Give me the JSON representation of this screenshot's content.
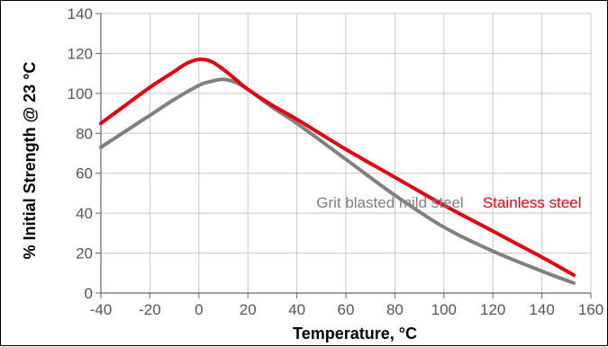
{
  "chart_data": {
    "type": "line",
    "xlabel": "Temperature, °C",
    "ylabel": "% Initial Strength @ 23 °C",
    "xlim": [
      -40,
      160
    ],
    "ylim": [
      0,
      140
    ],
    "xticks": [
      "-40",
      "-20",
      "0",
      "20",
      "40",
      "60",
      "80",
      "100",
      "120",
      "140",
      "160"
    ],
    "yticks": [
      "0",
      "20",
      "40",
      "60",
      "80",
      "100",
      "120",
      "140"
    ],
    "grid": true,
    "legend": "none",
    "series": [
      {
        "name": "Stainless steel",
        "color": "#e8000b",
        "x": [
          -40,
          -30,
          -20,
          -10,
          -5,
          0,
          5,
          10,
          15,
          20,
          30,
          40,
          60,
          80,
          100,
          120,
          140,
          153
        ],
        "y": [
          85,
          94,
          103,
          111,
          115,
          117,
          116,
          112,
          107,
          102,
          94,
          87,
          72,
          58,
          44,
          31,
          18,
          9
        ]
      },
      {
        "name": "Grit blasted mild steel",
        "color": "#808080",
        "x": [
          -40,
          -30,
          -20,
          -10,
          0,
          5,
          10,
          15,
          20,
          30,
          40,
          60,
          80,
          100,
          120,
          140,
          153
        ],
        "y": [
          73,
          81,
          89,
          97,
          104,
          106,
          107,
          105.5,
          102,
          93,
          85,
          67,
          49,
          33,
          21,
          11,
          5
        ]
      }
    ],
    "annotations": [
      {
        "text": "Grit blasted mild steel",
        "series": "Grit blasted mild steel",
        "x": 78,
        "y": 40,
        "color": "#808080"
      },
      {
        "text": "Stainless steel",
        "series": "Stainless steel",
        "x": 136,
        "y": 40,
        "color": "#e8000b"
      }
    ]
  }
}
